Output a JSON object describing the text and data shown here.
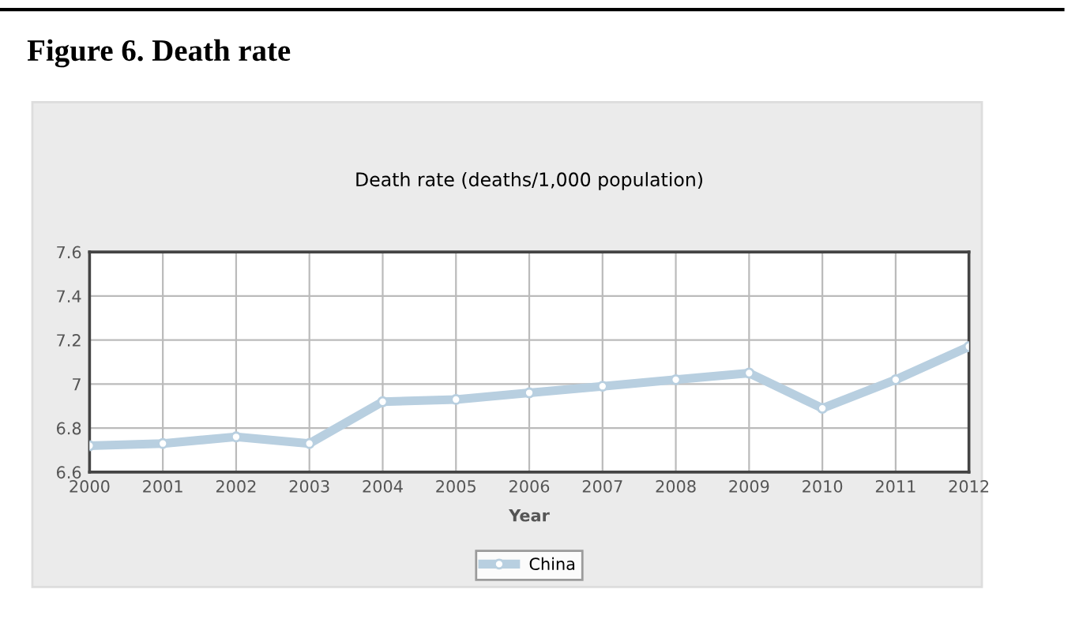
{
  "chart_data": {
    "type": "line",
    "title": "Death rate (deaths/1,000 population)",
    "xlabel": "Year",
    "annotations": [
      "Figure 6. Death rate"
    ],
    "x": [
      2000,
      2001,
      2002,
      2003,
      2004,
      2005,
      2006,
      2007,
      2008,
      2009,
      2010,
      2011,
      2012
    ],
    "series": [
      {
        "name": "China",
        "color": "#b8cfe0",
        "values": [
          6.72,
          6.73,
          6.76,
          6.73,
          6.92,
          6.93,
          6.96,
          6.99,
          7.02,
          7.05,
          6.89,
          7.02,
          7.17
        ]
      }
    ],
    "xlim": [
      2000,
      2012
    ],
    "xticks": [
      2000,
      2001,
      2002,
      2003,
      2004,
      2005,
      2006,
      2007,
      2008,
      2009,
      2010,
      2011,
      2012
    ],
    "ylim": [
      6.6,
      7.6
    ],
    "yticks": [
      6.6,
      6.8,
      {
        "value": 7.0,
        "label": "7"
      },
      7.2,
      7.4,
      7.6
    ],
    "grid": true,
    "legend": "bottom",
    "marker": "circle",
    "line_style": "solid"
  }
}
